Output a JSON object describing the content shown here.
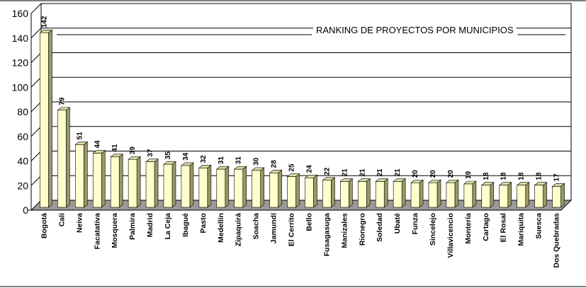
{
  "chart_data": {
    "type": "bar",
    "title": "RANKING DE PROYECTOS POR MUNICIPIOS",
    "xlabel": "",
    "ylabel": "",
    "ylim": [
      0,
      160
    ],
    "yticks": [
      0,
      20,
      40,
      60,
      80,
      100,
      120,
      140,
      160
    ],
    "grid": true,
    "style": "3d-column",
    "colors": {
      "front": "#ffffcc",
      "side": "#999966",
      "top": "#d9d9a6",
      "floor": "#9a9a9a",
      "wall": "#ffffff",
      "grid": "#000000"
    },
    "categories": [
      "Bogotá",
      "Cali",
      "Neiva",
      "Facatativa",
      "Mosquera",
      "Palmira",
      "Madrid",
      "La Ceja",
      "Ibagué",
      "Pasto",
      "Medellín",
      "Zipaquirá",
      "Soacha",
      "Jamundí",
      "El Cerrito",
      "Bello",
      "Fusagasuga",
      "Manizales",
      "Rionegro",
      "Soledad",
      "Ubaté",
      "Funza",
      "Sincelejo",
      "Villavicencio",
      "Montería",
      "Cartago",
      "El Rosal",
      "Mariquita",
      "Suesca",
      "Dos Quebradas"
    ],
    "values": [
      142,
      79,
      51,
      44,
      41,
      39,
      37,
      35,
      34,
      32,
      31,
      31,
      30,
      28,
      25,
      24,
      22,
      21,
      21,
      21,
      21,
      20,
      20,
      20,
      19,
      18,
      18,
      18,
      18,
      17
    ],
    "data_labels": [
      "142",
      "79",
      "51",
      "44",
      "41",
      "39",
      "37",
      "35",
      "34",
      "32",
      "31",
      "31",
      "30",
      "28",
      "25",
      "24",
      "22",
      "21",
      "21",
      "21",
      "21",
      "20",
      "20",
      "20",
      "19",
      "18",
      "18",
      "18",
      "18",
      "17"
    ]
  }
}
